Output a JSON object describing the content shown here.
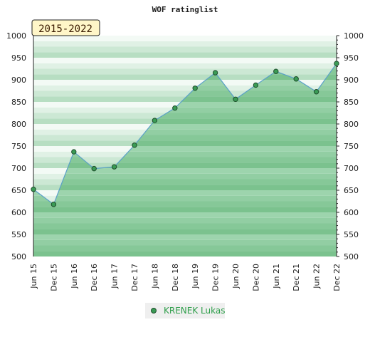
{
  "chart_data": {
    "type": "area",
    "title": "WOF ratinglist",
    "badge": "2015-2022",
    "categories": [
      "Jun 15",
      "Dec 15",
      "Jun 16",
      "Dec 16",
      "Jun 17",
      "Dec 17",
      "Jun 18",
      "Dec 18",
      "Jun 19",
      "Dec 19",
      "Jun 20",
      "Dec 20",
      "Jun 21",
      "Dec 21",
      "Jun 22",
      "Dec 22"
    ],
    "series": [
      {
        "name": "KRENEK Lukas",
        "values": [
          652,
          618,
          737,
          699,
          703,
          752,
          808,
          836,
          881,
          916,
          856,
          888,
          919,
          902,
          873,
          937
        ]
      }
    ],
    "ylim": [
      500,
      1000
    ],
    "yticks": [
      500,
      550,
      600,
      650,
      700,
      750,
      800,
      850,
      900,
      950,
      1000
    ],
    "grid": true,
    "legend": "bottom-center",
    "colors": {
      "line": "#5aa0c8",
      "area": "#7cc48f",
      "marker": "#3a9b55",
      "legend_text": "#2e9e4a",
      "badge_fill": "#fff6c8"
    }
  }
}
